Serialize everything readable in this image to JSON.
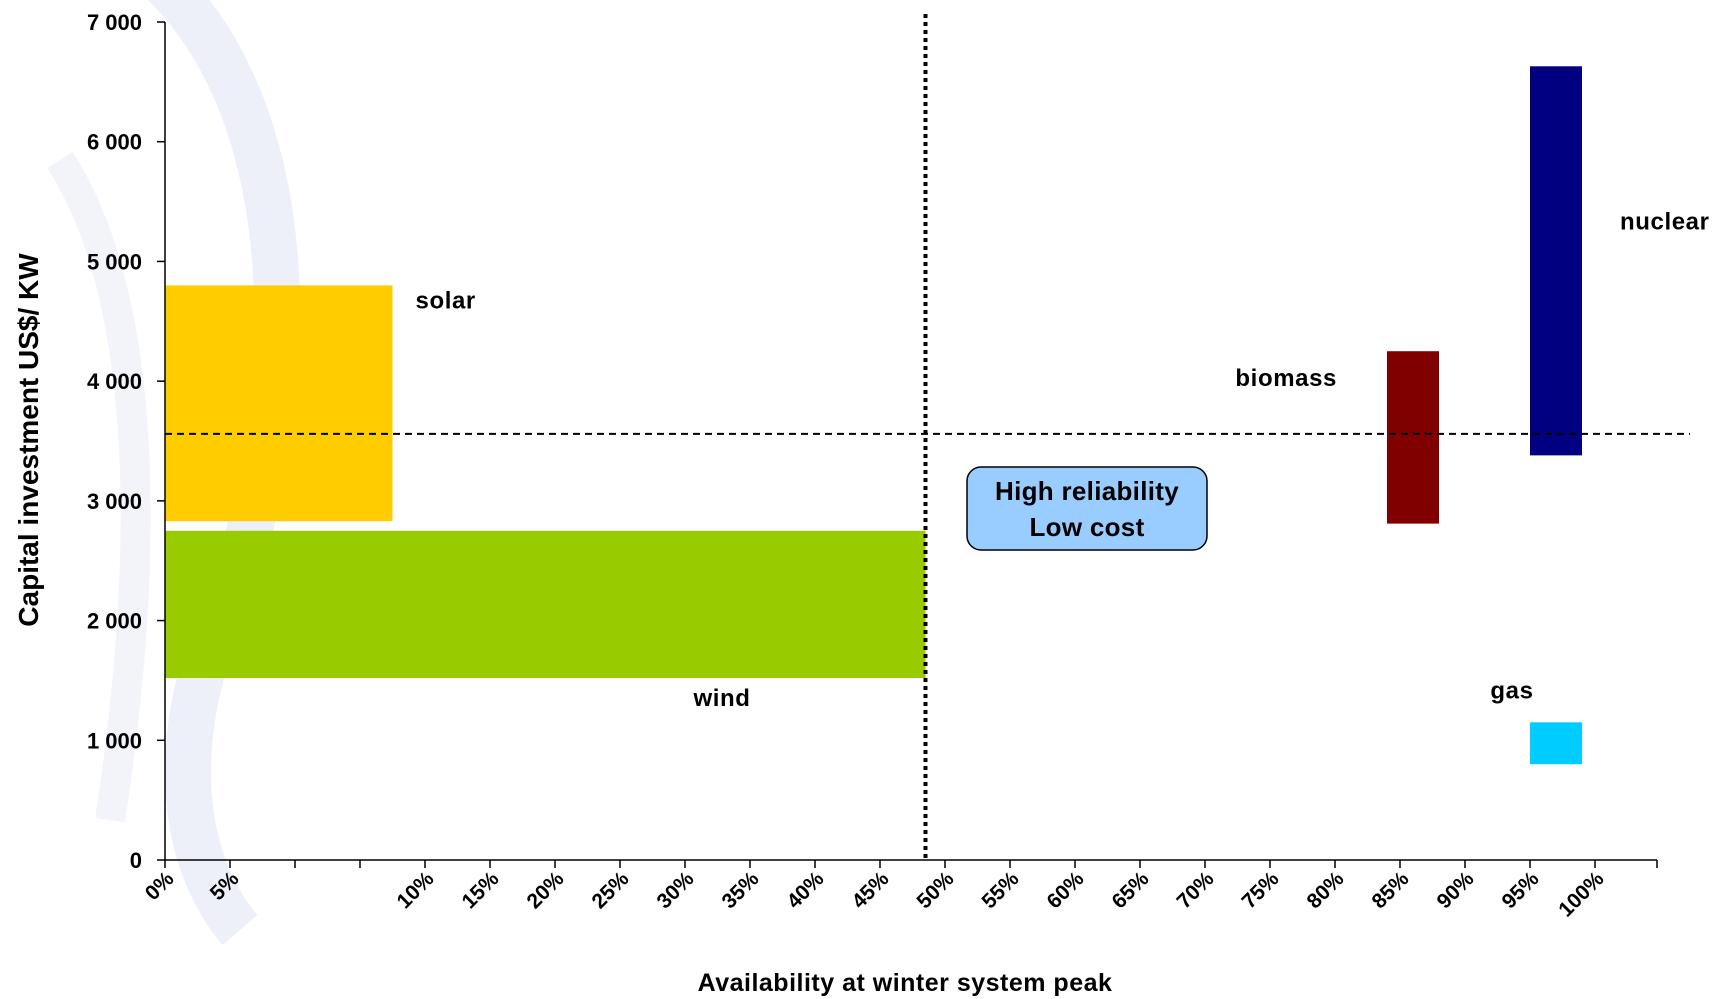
{
  "chart_data": {
    "type": "bar",
    "xlabel": "Availability at winter system peak",
    "ylabel": "Capital investment US$/ KW",
    "ylim": [
      0,
      7000
    ],
    "y_ticks": [
      0,
      1000,
      2000,
      3000,
      4000,
      5000,
      6000,
      7000
    ],
    "y_tick_labels": [
      "0",
      "1 000",
      "2 000",
      "3 000",
      "4 000",
      "5 000",
      "6 000",
      "7 000"
    ],
    "x_tick_labels": [
      "0%",
      "5%",
      "10%",
      "15%",
      "20%",
      "25%",
      "30%",
      "35%",
      "40%",
      "45%",
      "50%",
      "55%",
      "60%",
      "65%",
      "70%",
      "75%",
      "80%",
      "85%",
      "90%",
      "95%",
      "100%"
    ],
    "ranges": [
      {
        "name": "solar",
        "x": [
          0,
          7.5
        ],
        "y": [
          2830,
          4800
        ],
        "color": "#ffcc00"
      },
      {
        "name": "wind",
        "x": [
          0,
          48.5
        ],
        "y": [
          1520,
          2750
        ],
        "color": "#99cc00"
      },
      {
        "name": "biomass",
        "x": [
          84,
          88
        ],
        "y": [
          2810,
          4250
        ],
        "color": "#800000"
      },
      {
        "name": "nuclear",
        "x": [
          95,
          99
        ],
        "y": [
          3380,
          6630
        ],
        "color": "#000080"
      },
      {
        "name": "gas",
        "x": [
          95,
          99
        ],
        "y": [
          800,
          1150
        ],
        "color": "#00ccff"
      }
    ],
    "reference_lines": {
      "availability_pct": 48.5,
      "capital_cost": 3560
    },
    "annotation": {
      "lines": [
        "High reliability",
        "Low cost"
      ],
      "color": "#99ccff"
    },
    "grid": false
  }
}
